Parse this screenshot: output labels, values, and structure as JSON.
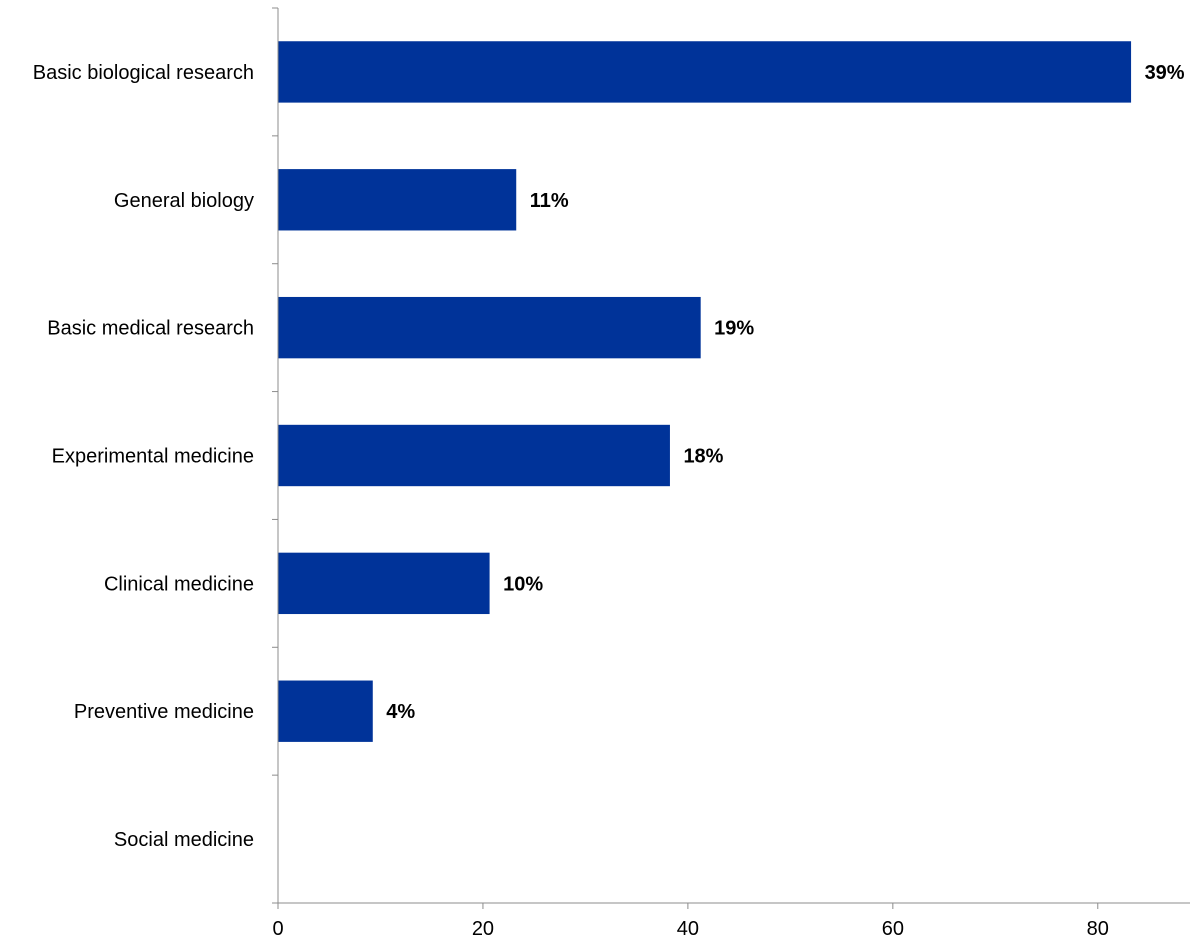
{
  "chart_data": {
    "type": "bar",
    "orientation": "horizontal",
    "categories": [
      "Basic biological research",
      "General biology",
      "Basic medical research",
      "Experimental medicine",
      "Clinical medicine",
      "Preventive medicine",
      "Social medicine"
    ],
    "values": [
      83.2,
      23.2,
      41.2,
      38.2,
      20.6,
      9.2,
      0
    ],
    "data_labels": [
      "39%",
      "11%",
      "19%",
      "18%",
      "10%",
      "4%",
      ""
    ],
    "xticks": [
      "0",
      "20",
      "40",
      "60",
      "80"
    ],
    "xlim": [
      0,
      89
    ],
    "title": "",
    "xlabel": "",
    "ylabel": "",
    "grid": false,
    "legend": "none",
    "bar_color": "#003399"
  }
}
